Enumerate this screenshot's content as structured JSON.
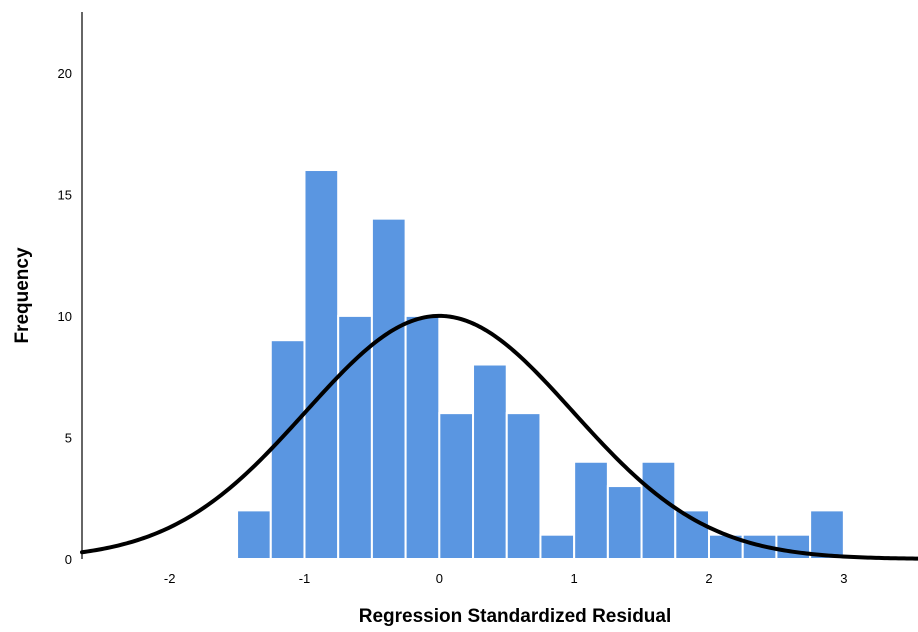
{
  "chart_data": {
    "type": "bar",
    "xlabel": "Regression Standardized Residual",
    "ylabel": "Frequency",
    "xlim": [
      -2.65,
      3.55
    ],
    "ylim": [
      0,
      22.5
    ],
    "xticks": [
      -2,
      -1,
      0,
      1,
      2,
      3
    ],
    "yticks": [
      0,
      5,
      10,
      15,
      20
    ],
    "bin_width": 0.25,
    "bins": [
      {
        "start": -1.5,
        "end": -1.25,
        "count": 2
      },
      {
        "start": -1.25,
        "end": -1.0,
        "count": 9
      },
      {
        "start": -1.0,
        "end": -0.75,
        "count": 16
      },
      {
        "start": -0.75,
        "end": -0.5,
        "count": 10
      },
      {
        "start": -0.5,
        "end": -0.25,
        "count": 14
      },
      {
        "start": -0.25,
        "end": 0.0,
        "count": 10
      },
      {
        "start": 0.0,
        "end": 0.25,
        "count": 6
      },
      {
        "start": 0.25,
        "end": 0.5,
        "count": 8
      },
      {
        "start": 0.5,
        "end": 0.75,
        "count": 6
      },
      {
        "start": 0.75,
        "end": 1.0,
        "count": 1
      },
      {
        "start": 1.0,
        "end": 1.25,
        "count": 4
      },
      {
        "start": 1.25,
        "end": 1.5,
        "count": 3
      },
      {
        "start": 1.5,
        "end": 1.75,
        "count": 4
      },
      {
        "start": 1.75,
        "end": 2.0,
        "count": 2
      },
      {
        "start": 2.0,
        "end": 2.25,
        "count": 1
      },
      {
        "start": 2.25,
        "end": 2.5,
        "count": 1
      },
      {
        "start": 2.5,
        "end": 2.75,
        "count": 1
      },
      {
        "start": 2.75,
        "end": 3.0,
        "count": 2
      }
    ],
    "normal_curve": {
      "mean": 0.0,
      "std_dev": 0.99,
      "peak": 10.0
    },
    "grid": false,
    "legend": "none",
    "colors": {
      "bar_fill": "#5a96e1",
      "bar_edge": "#ffffff",
      "curve": "#000000"
    }
  }
}
